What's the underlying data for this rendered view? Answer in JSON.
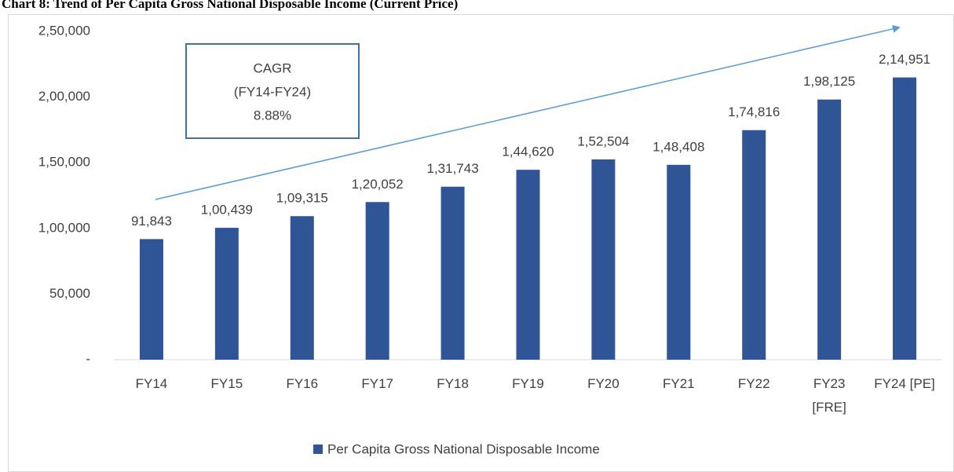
{
  "chart_data": {
    "type": "bar",
    "title": "Chart 8: Trend of Per Capita Gross National Disposable Income (Current Price)",
    "categories": [
      "FY14",
      "FY15",
      "FY16",
      "FY17",
      "FY18",
      "FY19",
      "FY20",
      "FY21",
      "FY22",
      "FY23 [FRE]",
      "FY24 [PE]"
    ],
    "series": [
      {
        "name": "Per Capita Gross National Disposable Income",
        "color": "#2f5597",
        "values": [
          91843,
          100439,
          109315,
          120052,
          131743,
          144620,
          152504,
          148408,
          174816,
          198125,
          214951
        ],
        "value_labels": [
          "91,843",
          "1,00,439",
          "1,09,315",
          "1,20,052",
          "1,31,743",
          "1,44,620",
          "1,52,504",
          "1,48,408",
          "1,74,816",
          "1,98,125",
          "2,14,951"
        ]
      }
    ],
    "ylim": [
      0,
      250000
    ],
    "yticks": [
      {
        "value": 0,
        "label": "-"
      },
      {
        "value": 50000,
        "label": "50,000"
      },
      {
        "value": 100000,
        "label": "1,00,000"
      },
      {
        "value": 150000,
        "label": "1,50,000"
      },
      {
        "value": 200000,
        "label": "2,00,000"
      },
      {
        "value": 250000,
        "label": "2,50,000"
      }
    ],
    "grid": false,
    "legend": "bottom",
    "annotation": [
      "CAGR",
      "(FY14-FY24)",
      "8.88%"
    ]
  }
}
